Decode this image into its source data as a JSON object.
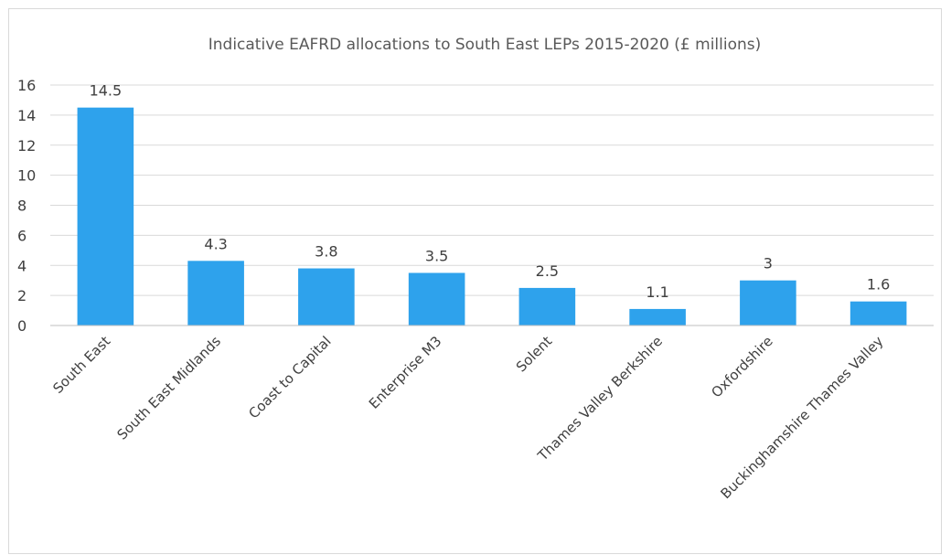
{
  "chart_data": {
    "type": "bar",
    "title": "Indicative EAFRD allocations to South East LEPs 2015-2020 (£ millions)",
    "xlabel": "",
    "ylabel": "",
    "categories": [
      "South East",
      "South East Midlands",
      "Coast to Capital",
      "Enterprise M3",
      "Solent",
      "Thames Valley Berkshire",
      "Oxfordshire",
      "Buckinghamshire Thames Valley"
    ],
    "values": [
      14.5,
      4.3,
      3.8,
      3.5,
      2.5,
      1.1,
      3,
      1.6
    ],
    "data_labels": [
      "14.5",
      "4.3",
      "3.8",
      "3.5",
      "2.5",
      "1.1",
      "3",
      "1.6"
    ],
    "ylim": [
      0,
      16
    ],
    "y_ticks": [
      0,
      2,
      4,
      6,
      8,
      10,
      12,
      14,
      16
    ],
    "y_tick_labels": [
      "0",
      "2",
      "4",
      "6",
      "8",
      "10",
      "12",
      "14",
      "16"
    ],
    "grid": true,
    "legend": "none",
    "bar_color": "#2ea2ec"
  }
}
